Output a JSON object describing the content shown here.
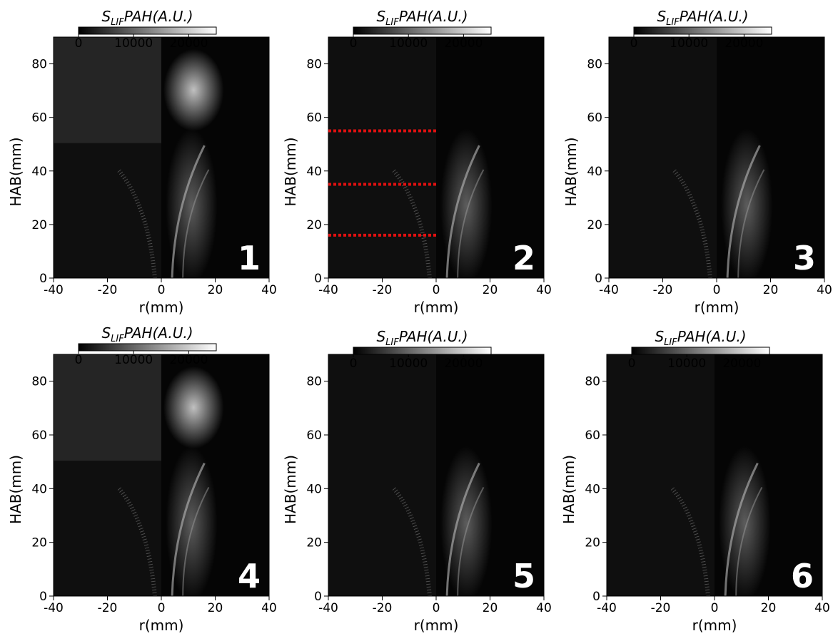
{
  "chart_data": [
    {
      "type": "image",
      "panel_label": "1",
      "xlabel": "r(mm)",
      "ylabel": "HAB(mm)",
      "xlim": [
        -40,
        40
      ],
      "ylim": [
        0,
        90
      ],
      "xticks": [
        -40,
        -20,
        0,
        20,
        40
      ],
      "yticks": [
        0,
        20,
        40,
        60,
        80
      ],
      "colorbar": {
        "label": [
          "S",
          "LIF",
          "PAH(A.U.)"
        ],
        "lim": [
          0,
          25000
        ],
        "ticks": [
          0,
          10000,
          20000
        ]
      }
    },
    {
      "type": "image",
      "panel_label": "2",
      "xlabel": "r(mm)",
      "ylabel": "HAB(mm)",
      "xlim": [
        -40,
        40
      ],
      "ylim": [
        0,
        90
      ],
      "xticks": [
        -40,
        -20,
        0,
        20,
        40
      ],
      "yticks": [
        0,
        20,
        40,
        60,
        80
      ],
      "colorbar": {
        "label": [
          "S",
          "LIF",
          "PAH(A.U.)"
        ],
        "lim": [
          0,
          25000
        ],
        "ticks": [
          0,
          10000,
          20000
        ]
      },
      "hlines": [
        55,
        35,
        16
      ],
      "hline_xlim": [
        -40,
        0
      ],
      "hline_color": "#e01010"
    },
    {
      "type": "image",
      "panel_label": "3",
      "xlabel": "r(mm)",
      "ylabel": "HAB(mm)",
      "xlim": [
        -40,
        40
      ],
      "ylim": [
        0,
        90
      ],
      "xticks": [
        -40,
        -20,
        0,
        20,
        40
      ],
      "yticks": [
        0,
        20,
        40,
        60,
        80
      ],
      "colorbar": {
        "label": [
          "S",
          "LIF",
          "PAH(A.U.)"
        ],
        "lim": [
          0,
          25000
        ],
        "ticks": [
          0,
          10000,
          20000
        ]
      }
    },
    {
      "type": "image",
      "panel_label": "4",
      "xlabel": "r(mm)",
      "ylabel": "HAB(mm)",
      "xlim": [
        -40,
        40
      ],
      "ylim": [
        0,
        90
      ],
      "xticks": [
        -40,
        -20,
        0,
        20,
        40
      ],
      "yticks": [
        0,
        20,
        40,
        60,
        80
      ],
      "colorbar": {
        "label": [
          "S",
          "LIF",
          "PAH(A.U.)"
        ],
        "lim": [
          0,
          25000
        ],
        "ticks": [
          0,
          10000,
          20000
        ]
      }
    },
    {
      "type": "image",
      "panel_label": "5",
      "xlabel": "r(mm)",
      "ylabel": "HAB(mm)",
      "xlim": [
        -40,
        40
      ],
      "ylim": [
        0,
        90
      ],
      "xticks": [
        -40,
        -20,
        0,
        20,
        40
      ],
      "yticks": [
        0,
        20,
        40,
        60,
        80
      ],
      "colorbar": {
        "label": [
          "S",
          "LIF",
          "PAH(A.U.)"
        ],
        "lim": [
          0,
          25000
        ],
        "ticks": [
          0,
          10000,
          20000
        ]
      }
    },
    {
      "type": "image",
      "panel_label": "6",
      "xlabel": "r(mm)",
      "ylabel": "HAB(mm)",
      "xlim": [
        -40,
        40
      ],
      "ylim": [
        0,
        90
      ],
      "xticks": [
        -40,
        -20,
        0,
        20,
        40
      ],
      "yticks": [
        0,
        20,
        40,
        60,
        80
      ],
      "colorbar": {
        "label": [
          "S",
          "LIF",
          "PAH(A.U.)"
        ],
        "lim": [
          0,
          25000
        ],
        "ticks": [
          0,
          10000,
          20000
        ]
      }
    }
  ]
}
